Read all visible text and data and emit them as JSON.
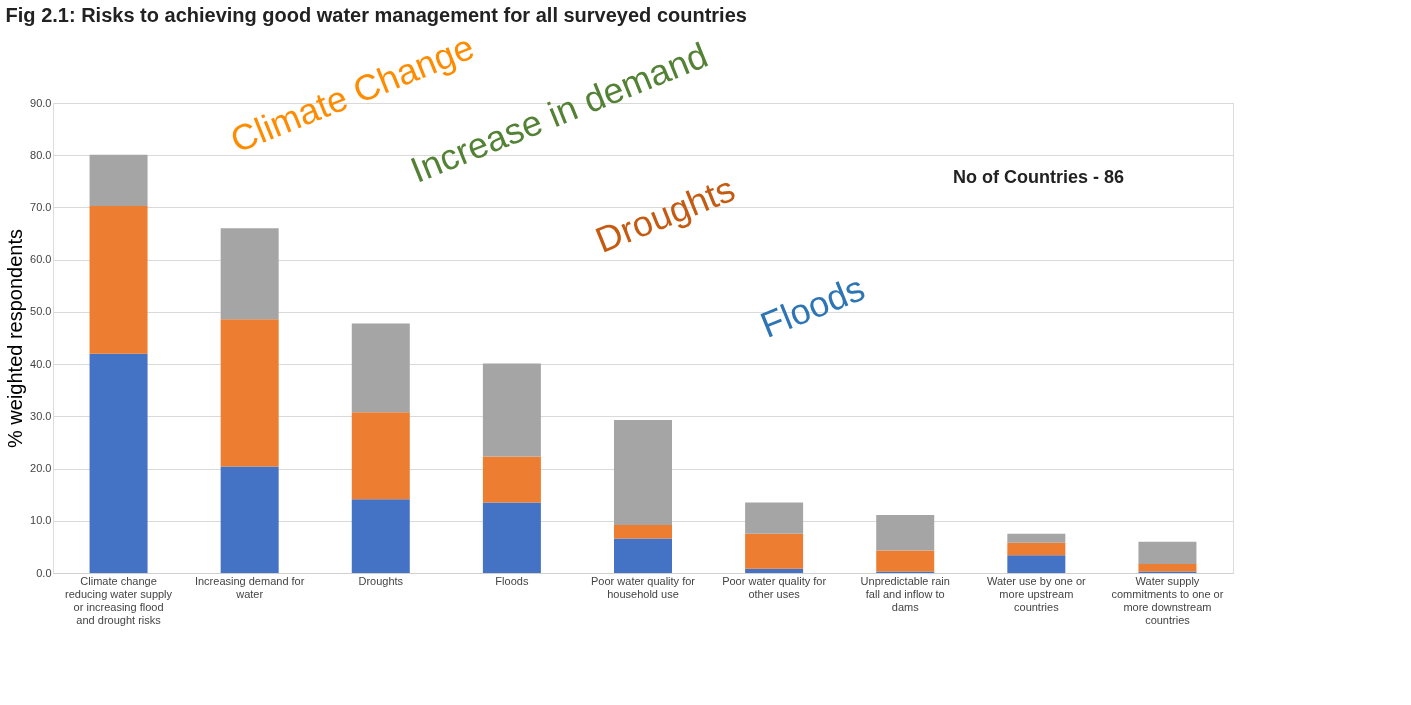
{
  "chart_data": {
    "type": "bar",
    "title": "Fig 2.1: Risks to achieving good water management for all surveyed countries",
    "ylabel": "% weighted respondents",
    "categories": [
      "Climate change reducing water supply or increasing flood and drought risks",
      "Increasing demand for water",
      "Droughts",
      "Floods",
      "Poor water quality for household use",
      "Poor water quality for other uses",
      "Unpredictable rain fall and inflow to dams",
      "Water use by one or more upstream countries",
      "Water supply commitments to one or more downstream countries"
    ],
    "series": [
      {
        "color": "#4472c4",
        "values": [
          42.0,
          20.4,
          14.1,
          13.5,
          6.6,
          0.8,
          0.3,
          3.4,
          0.3
        ]
      },
      {
        "color": "#ed7d31",
        "values": [
          28.3,
          28.2,
          16.7,
          8.8,
          2.6,
          6.7,
          4.0,
          2.4,
          1.4
        ]
      },
      {
        "color": "#a5a5a5",
        "values": [
          9.8,
          17.4,
          17.0,
          17.8,
          20.1,
          6.0,
          6.8,
          1.7,
          4.3
        ]
      }
    ],
    "stacked": true,
    "ylim": [
      0,
      90
    ],
    "yticks": [
      {
        "value": 0,
        "label": "0.0"
      },
      {
        "value": 10,
        "label": "10.0"
      },
      {
        "value": 20,
        "label": "20.0"
      },
      {
        "value": 30,
        "label": "30.0"
      },
      {
        "value": 40,
        "label": "40.0"
      },
      {
        "value": 50,
        "label": "50.0"
      },
      {
        "value": 60,
        "label": "60.0"
      },
      {
        "value": 70,
        "label": "70.0"
      },
      {
        "value": 80,
        "label": "80.0"
      },
      {
        "value": 90,
        "label": "90.0"
      }
    ],
    "grid": "y",
    "legend": false,
    "annotations": [
      "No of Countries - 86",
      "Climate Change",
      "Increase in demand",
      "Droughts",
      "Floods"
    ]
  }
}
